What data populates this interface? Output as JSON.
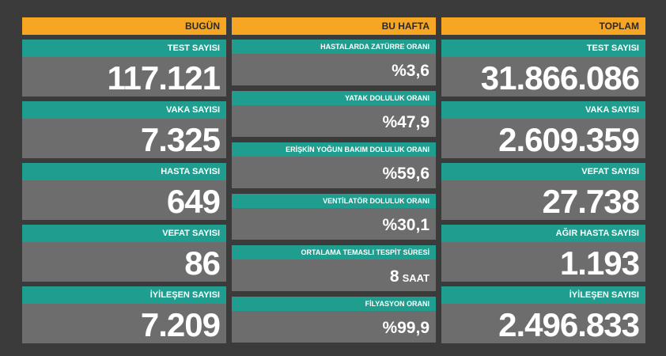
{
  "columns": [
    {
      "header": "BUGÜN",
      "items": [
        {
          "label": "TEST SAYISI",
          "value": "117.121"
        },
        {
          "label": "VAKA SAYISI",
          "value": "7.325"
        },
        {
          "label": "HASTA SAYISI",
          "value": "649"
        },
        {
          "label": "VEFAT SAYISI",
          "value": "86"
        },
        {
          "label": "İYİLEŞEN SAYISI",
          "value": "7.209"
        }
      ]
    },
    {
      "header": "BU HAFTA",
      "items": [
        {
          "label": "HASTALARDA ZATÜRRE ORANI",
          "value": "%3,6"
        },
        {
          "label": "YATAK DOLULUK ORANI",
          "value": "%47,9"
        },
        {
          "label": "ERİŞKİN YOĞUN BAKIM DOLULUK ORANI",
          "value": "%59,6"
        },
        {
          "label": "VENTİLATÖR DOLULUK ORANI",
          "value": "%30,1"
        },
        {
          "label": "ORTALAMA TEMASLI TESPİT SÜRESİ",
          "value": "8",
          "unit": "SAAT"
        },
        {
          "label": "FİLYASYON ORANI",
          "value": "%99,9"
        }
      ]
    },
    {
      "header": "TOPLAM",
      "items": [
        {
          "label": "TEST SAYISI",
          "value": "31.866.086"
        },
        {
          "label": "VAKA SAYISI",
          "value": "2.609.359"
        },
        {
          "label": "VEFAT SAYISI",
          "value": "27.738"
        },
        {
          "label": "AĞIR HASTA SAYISI",
          "value": "1.193"
        },
        {
          "label": "İYİLEŞEN SAYISI",
          "value": "2.496.833"
        }
      ]
    }
  ]
}
